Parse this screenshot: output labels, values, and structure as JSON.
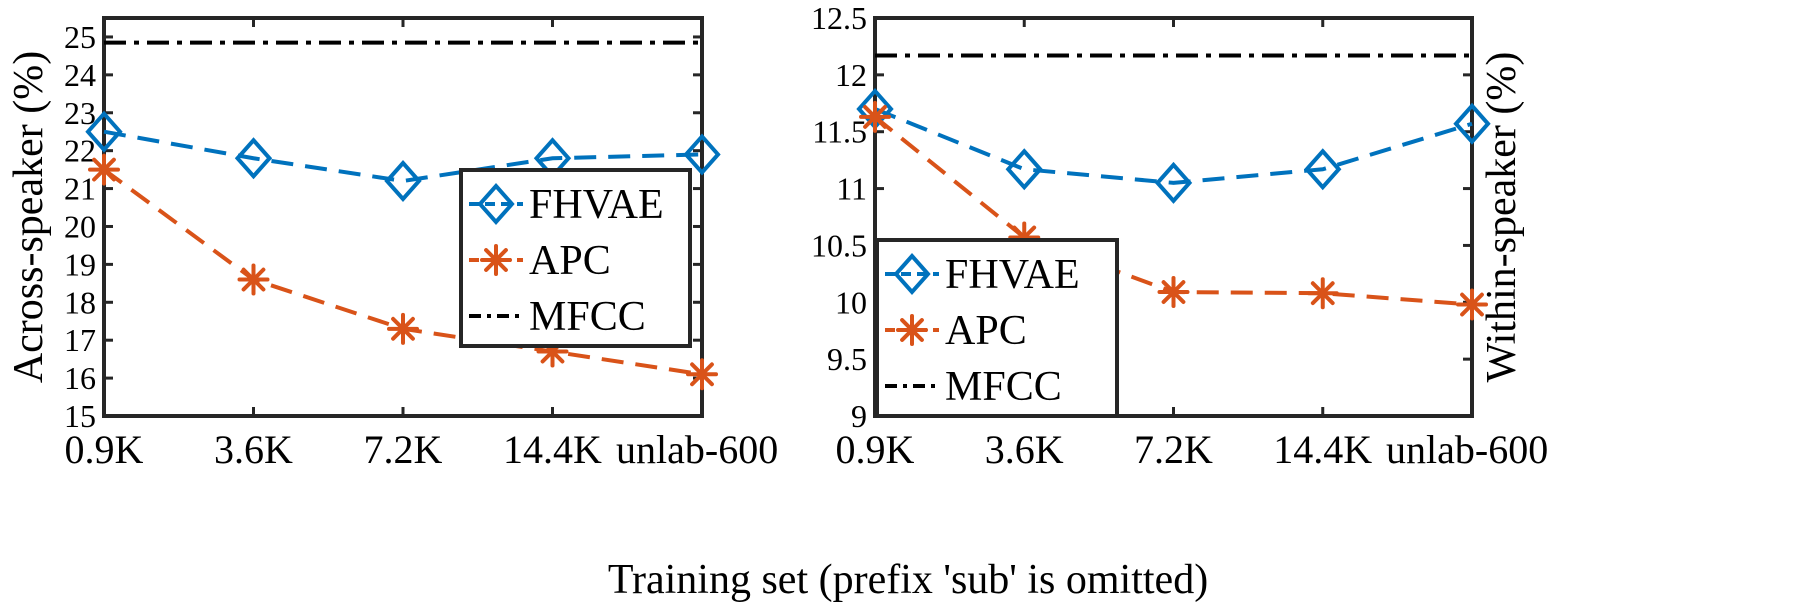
{
  "figure": {
    "xlabel": "Training set (prefix 'sub' is omitted)"
  },
  "chart_data": [
    {
      "type": "line",
      "categories": [
        "0.9K",
        "3.6K",
        "7.2K",
        "14.4K",
        "unlab-600"
      ],
      "ylabel": "Across-speaker (%)",
      "ylim": [
        15,
        25.5
      ],
      "yticks": [
        15,
        16,
        17,
        18,
        19,
        20,
        21,
        22,
        23,
        24,
        25
      ],
      "legend_location": "center-right",
      "series": [
        {
          "name": "FHVAE",
          "marker": "diamond",
          "linestyle": "dashed",
          "color": "#0072BD",
          "values": [
            22.5,
            21.8,
            21.2,
            21.8,
            21.9
          ]
        },
        {
          "name": "APC",
          "marker": "asterisk",
          "linestyle": "dashed",
          "color": "#D95319",
          "values": [
            21.5,
            18.6,
            17.3,
            16.7,
            16.1
          ]
        },
        {
          "name": "MFCC",
          "marker": "none",
          "linestyle": "dashdot",
          "color": "#000000",
          "values": [
            24.85,
            24.85,
            24.85,
            24.85,
            24.85
          ]
        }
      ]
    },
    {
      "type": "line",
      "categories": [
        "0.9K",
        "3.6K",
        "7.2K",
        "14.4K",
        "unlab-600"
      ],
      "ylabel": "Within-speaker (%)",
      "ylim": [
        9,
        12.5
      ],
      "yticks": [
        9,
        9.5,
        10,
        10.5,
        11,
        11.5,
        12,
        12.5
      ],
      "legend_location": "lower-left",
      "series": [
        {
          "name": "FHVAE",
          "marker": "diamond",
          "linestyle": "dashed",
          "color": "#0072BD",
          "values": [
            11.7,
            11.17,
            11.05,
            11.17,
            11.57
          ]
        },
        {
          "name": "APC",
          "marker": "asterisk",
          "linestyle": "dashed",
          "color": "#D95319",
          "values": [
            11.63,
            10.57,
            10.09,
            10.08,
            9.98
          ]
        },
        {
          "name": "MFCC",
          "marker": "none",
          "linestyle": "dashdot",
          "color": "#000000",
          "values": [
            12.17,
            12.17,
            12.17,
            12.17,
            12.17
          ]
        }
      ]
    }
  ]
}
